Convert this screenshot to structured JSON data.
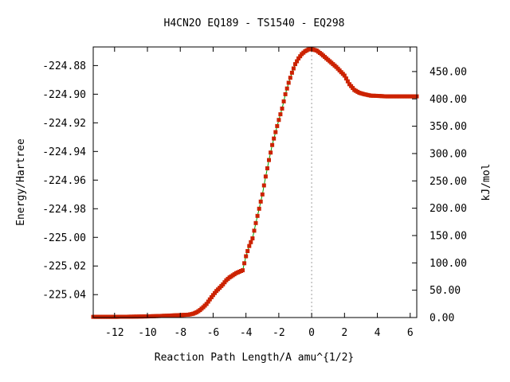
{
  "chart_data": {
    "type": "line",
    "title": "H4CN2O   EQ189 - TS1540 - EQ298",
    "xlabel": "Reaction Path Length/A amu^{1/2}",
    "ylabel": "Energy/Hartree",
    "y2label": "kJ/mol",
    "xlim": [
      -13.3,
      6.4
    ],
    "ylim": [
      -225.056,
      -224.867
    ],
    "y2lim": [
      0,
      495
    ],
    "x_ticks": [
      -12,
      -10,
      -8,
      -6,
      -4,
      -2,
      0,
      2,
      4,
      6
    ],
    "x_tick_labels": [
      "-12",
      "-10",
      "-8",
      "-6",
      "-4",
      "-2",
      "0",
      "2",
      "4",
      "6"
    ],
    "y_ticks": [
      -225.04,
      -225.02,
      -225.0,
      -224.98,
      -224.96,
      -224.94,
      -224.92,
      -224.9,
      -224.88
    ],
    "y_tick_labels": [
      "-225.04",
      "-225.02",
      "-225.00",
      "-224.98",
      "-224.96",
      "-224.94",
      "-224.92",
      "-224.90",
      "-224.88"
    ],
    "y2_ticks": [
      0,
      50,
      100,
      150,
      200,
      250,
      300,
      350,
      400,
      450
    ],
    "y2_tick_labels": [
      "0.00",
      "50.00",
      "100.00",
      "150.00",
      "200.00",
      "250.00",
      "300.00",
      "350.00",
      "400.00",
      "450.00"
    ],
    "ts_x": 0,
    "line_color": "#00a000",
    "marker_color": "#cc2200",
    "ts_line_color": "#a0a0a0",
    "series": [
      {
        "x": [
          -13.3,
          -12.5,
          -12.0,
          -11.0,
          -10.0,
          -9.0,
          -8.0,
          -7.5,
          -7.2,
          -7.0,
          -6.8,
          -6.6,
          -6.4,
          -6.2,
          -6.0,
          -5.8,
          -5.6,
          -5.4,
          -5.2,
          -5.0,
          -4.8,
          -4.6,
          -4.4,
          -4.2,
          -4.0,
          -3.8,
          -3.6,
          -3.4,
          -3.2,
          -3.0,
          -2.8,
          -2.6,
          -2.4,
          -2.2,
          -2.0,
          -1.8,
          -1.6,
          -1.4,
          -1.2,
          -1.0,
          -0.8,
          -0.6,
          -0.4,
          -0.2,
          0.0,
          0.3,
          0.6,
          1.0,
          1.5,
          2.0,
          2.3,
          2.6,
          2.9,
          3.2,
          3.6,
          4.0,
          4.5,
          5.0,
          5.5,
          6.0,
          6.4
        ],
        "y": [
          -225.0555,
          -225.0555,
          -225.0555,
          -225.0554,
          -225.0552,
          -225.0548,
          -225.0543,
          -225.054,
          -225.0533,
          -225.0523,
          -225.0508,
          -225.0488,
          -225.0465,
          -225.0433,
          -225.0403,
          -225.0375,
          -225.0352,
          -225.0328,
          -225.03,
          -225.028,
          -225.0265,
          -225.025,
          -225.024,
          -225.023,
          -225.0132,
          -225.006,
          -225.0007,
          -224.99,
          -224.98,
          -224.97,
          -224.9575,
          -224.946,
          -224.9355,
          -224.9265,
          -224.918,
          -224.91,
          -224.9,
          -224.892,
          -224.885,
          -224.879,
          -224.875,
          -224.872,
          -224.87,
          -224.8688,
          -224.8685,
          -224.8695,
          -224.872,
          -224.876,
          -224.881,
          -224.887,
          -224.893,
          -224.897,
          -224.899,
          -224.9,
          -224.901,
          -224.9012,
          -224.9015,
          -224.9015,
          -224.9015,
          -224.9015,
          -224.9015
        ]
      }
    ]
  }
}
